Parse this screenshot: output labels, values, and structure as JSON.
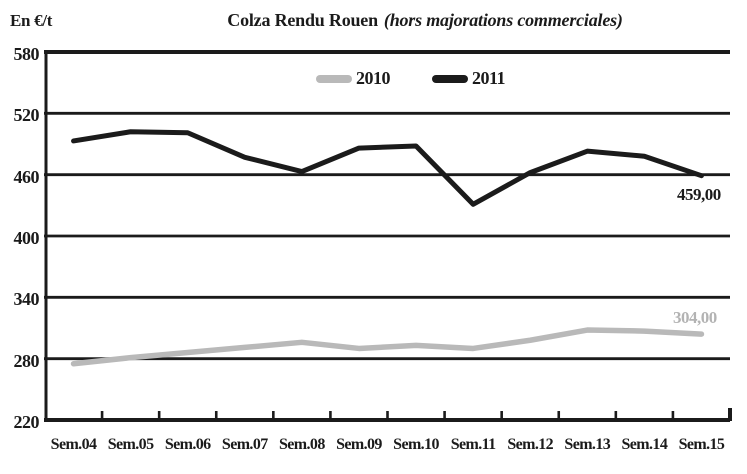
{
  "header": {
    "unit_label": "En €/t",
    "title_main": "Colza Rendu Rouen",
    "title_note": "(hors majorations commerciales)"
  },
  "chart_data": {
    "type": "line",
    "title": "Colza Rendu Rouen (hors majorations commerciales)",
    "ylabel": "En €/t",
    "xlabel": "",
    "ylim": [
      220,
      580
    ],
    "yticks": [
      580,
      520,
      460,
      400,
      340,
      280,
      220
    ],
    "grid": "horizontal-only",
    "legend_position": "top-center",
    "categories": [
      "Sem.04",
      "Sem.05",
      "Sem.06",
      "Sem.07",
      "Sem.08",
      "Sem.09",
      "Sem.10",
      "Sem.11",
      "Sem.12",
      "Sem.13",
      "Sem.14",
      "Sem.15"
    ],
    "series": [
      {
        "name": "2010",
        "color": "#b9b9b9",
        "values": [
          275,
          281,
          286,
          291,
          296,
          290,
          293,
          290,
          298,
          308,
          307,
          304
        ]
      },
      {
        "name": "2011",
        "color": "#1b1b1b",
        "values": [
          493,
          502,
          501,
          477,
          463,
          486,
          488,
          431,
          462,
          483,
          478,
          459
        ]
      }
    ],
    "annotations": [
      {
        "series": "2010",
        "category": "Sem.15",
        "text": "304,00",
        "color": "#b3b3b3"
      },
      {
        "series": "2011",
        "category": "Sem.15",
        "text": "459,00",
        "color": "#1b1b1b"
      }
    ]
  },
  "colors": {
    "axis": "#1b1b1b",
    "background": "#ffffff"
  }
}
